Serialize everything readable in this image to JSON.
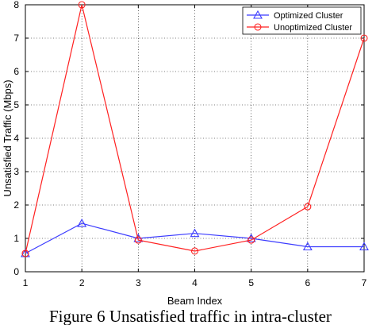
{
  "chart_data": {
    "type": "line",
    "title": "",
    "xlabel": "Beam Index",
    "ylabel": "Unsatisfied Traffic (Mbps)",
    "x": [
      1,
      2,
      3,
      4,
      5,
      6,
      7
    ],
    "xlim": [
      1,
      7
    ],
    "ylim": [
      0,
      8
    ],
    "xticks": [
      "1",
      "2",
      "3",
      "4",
      "5",
      "6",
      "7"
    ],
    "yticks": [
      "0",
      "1",
      "2",
      "3",
      "4",
      "5",
      "6",
      "7",
      "8"
    ],
    "grid": true,
    "legend_position": "top-right",
    "series": [
      {
        "name": "Optimized Cluster",
        "marker": "triangle",
        "color": "#3b3bff",
        "values": [
          0.55,
          1.45,
          1.0,
          1.15,
          1.0,
          0.75,
          0.75
        ]
      },
      {
        "name": "Unoptimized Cluster",
        "marker": "circle",
        "color": "#ff2020",
        "values": [
          0.55,
          8.0,
          0.95,
          0.62,
          0.95,
          1.95,
          7.0
        ]
      }
    ]
  },
  "caption": "Figure 6 Unsatisfied traffic in intra-cluster"
}
